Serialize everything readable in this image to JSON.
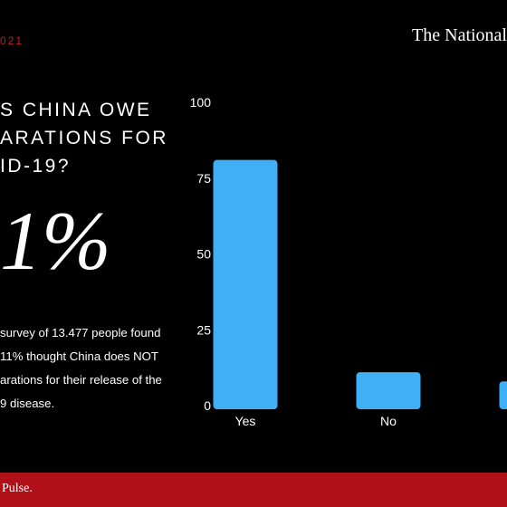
{
  "header": {
    "date": "021",
    "brand": "The National"
  },
  "headline": {
    "lines": [
      "S CHINA OWE",
      "ARATIONS FOR",
      "ID-19?"
    ]
  },
  "stat": {
    "value": "1%"
  },
  "description": {
    "lines": [
      "survey of 13.477 people found",
      "11% thought China does NOT",
      "arations for their release of the",
      "9 disease."
    ]
  },
  "footer": {
    "text": "Pulse."
  },
  "colors": {
    "background": "#000000",
    "bar": "#3fb0f5",
    "accent_red": "#b01018",
    "date_red": "#c81d25"
  },
  "chart_data": {
    "type": "bar",
    "categories": [
      "Yes",
      "No",
      ""
    ],
    "values": [
      81,
      11,
      8
    ],
    "ylim": [
      0,
      100
    ],
    "yticks": [
      0,
      25,
      50,
      75,
      100
    ],
    "xlabel": "",
    "ylabel": "",
    "title": ""
  }
}
